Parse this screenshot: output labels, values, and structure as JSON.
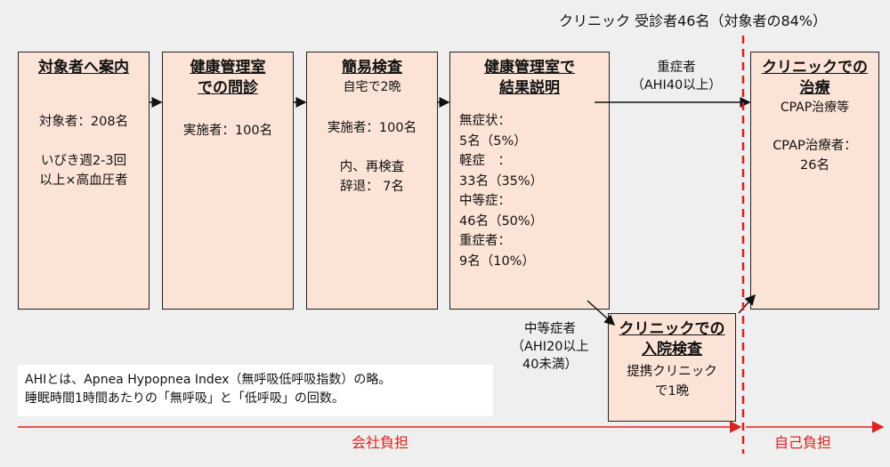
{
  "header": {
    "clinic_summary": "クリニック 受診者46名（対象者の84%）"
  },
  "steps": [
    {
      "title": "対象者へ案内",
      "lines": "対象者：208名\n\nいびき週2-3回\n以上×高血圧者"
    },
    {
      "title": "健康管理室\nでの問診",
      "lines": "実施者：100名"
    },
    {
      "title": "簡易検査",
      "subtitle": "自宅で2晩",
      "lines": "実施者：100名\n\n内、再検査\n辞退： 7名"
    },
    {
      "title": "健康管理室で\n結果説明",
      "lines": "無症状：\n 5名（5%）\n軽症　：\n 33名（35%）\n中等症：\n 46名（50%）\n重症者：\n 9名（10%）"
    },
    {
      "title": "クリニックでの\n治療",
      "subtitle": "CPAP治療等",
      "lines": "CPAP治療者：\n26名"
    },
    {
      "title": "クリニックでの\n入院検査",
      "lines": "提携クリニック\nで1晩"
    }
  ],
  "severe_label": "重症者\n（AHI40以上）",
  "moderate_label": "中等症者\n（AHI20以上\n40未満）",
  "note": "AHIとは、Apnea Hypopnea Index（無呼吸低呼吸指数）の略。\n睡眠時間1時間あたりの「無呼吸」と「低呼吸」の回数。",
  "cost": {
    "company": "会社負担",
    "self": "自己負担"
  },
  "colors": {
    "box_fill": "#fbe4d6",
    "accent_red": "#e02020"
  }
}
